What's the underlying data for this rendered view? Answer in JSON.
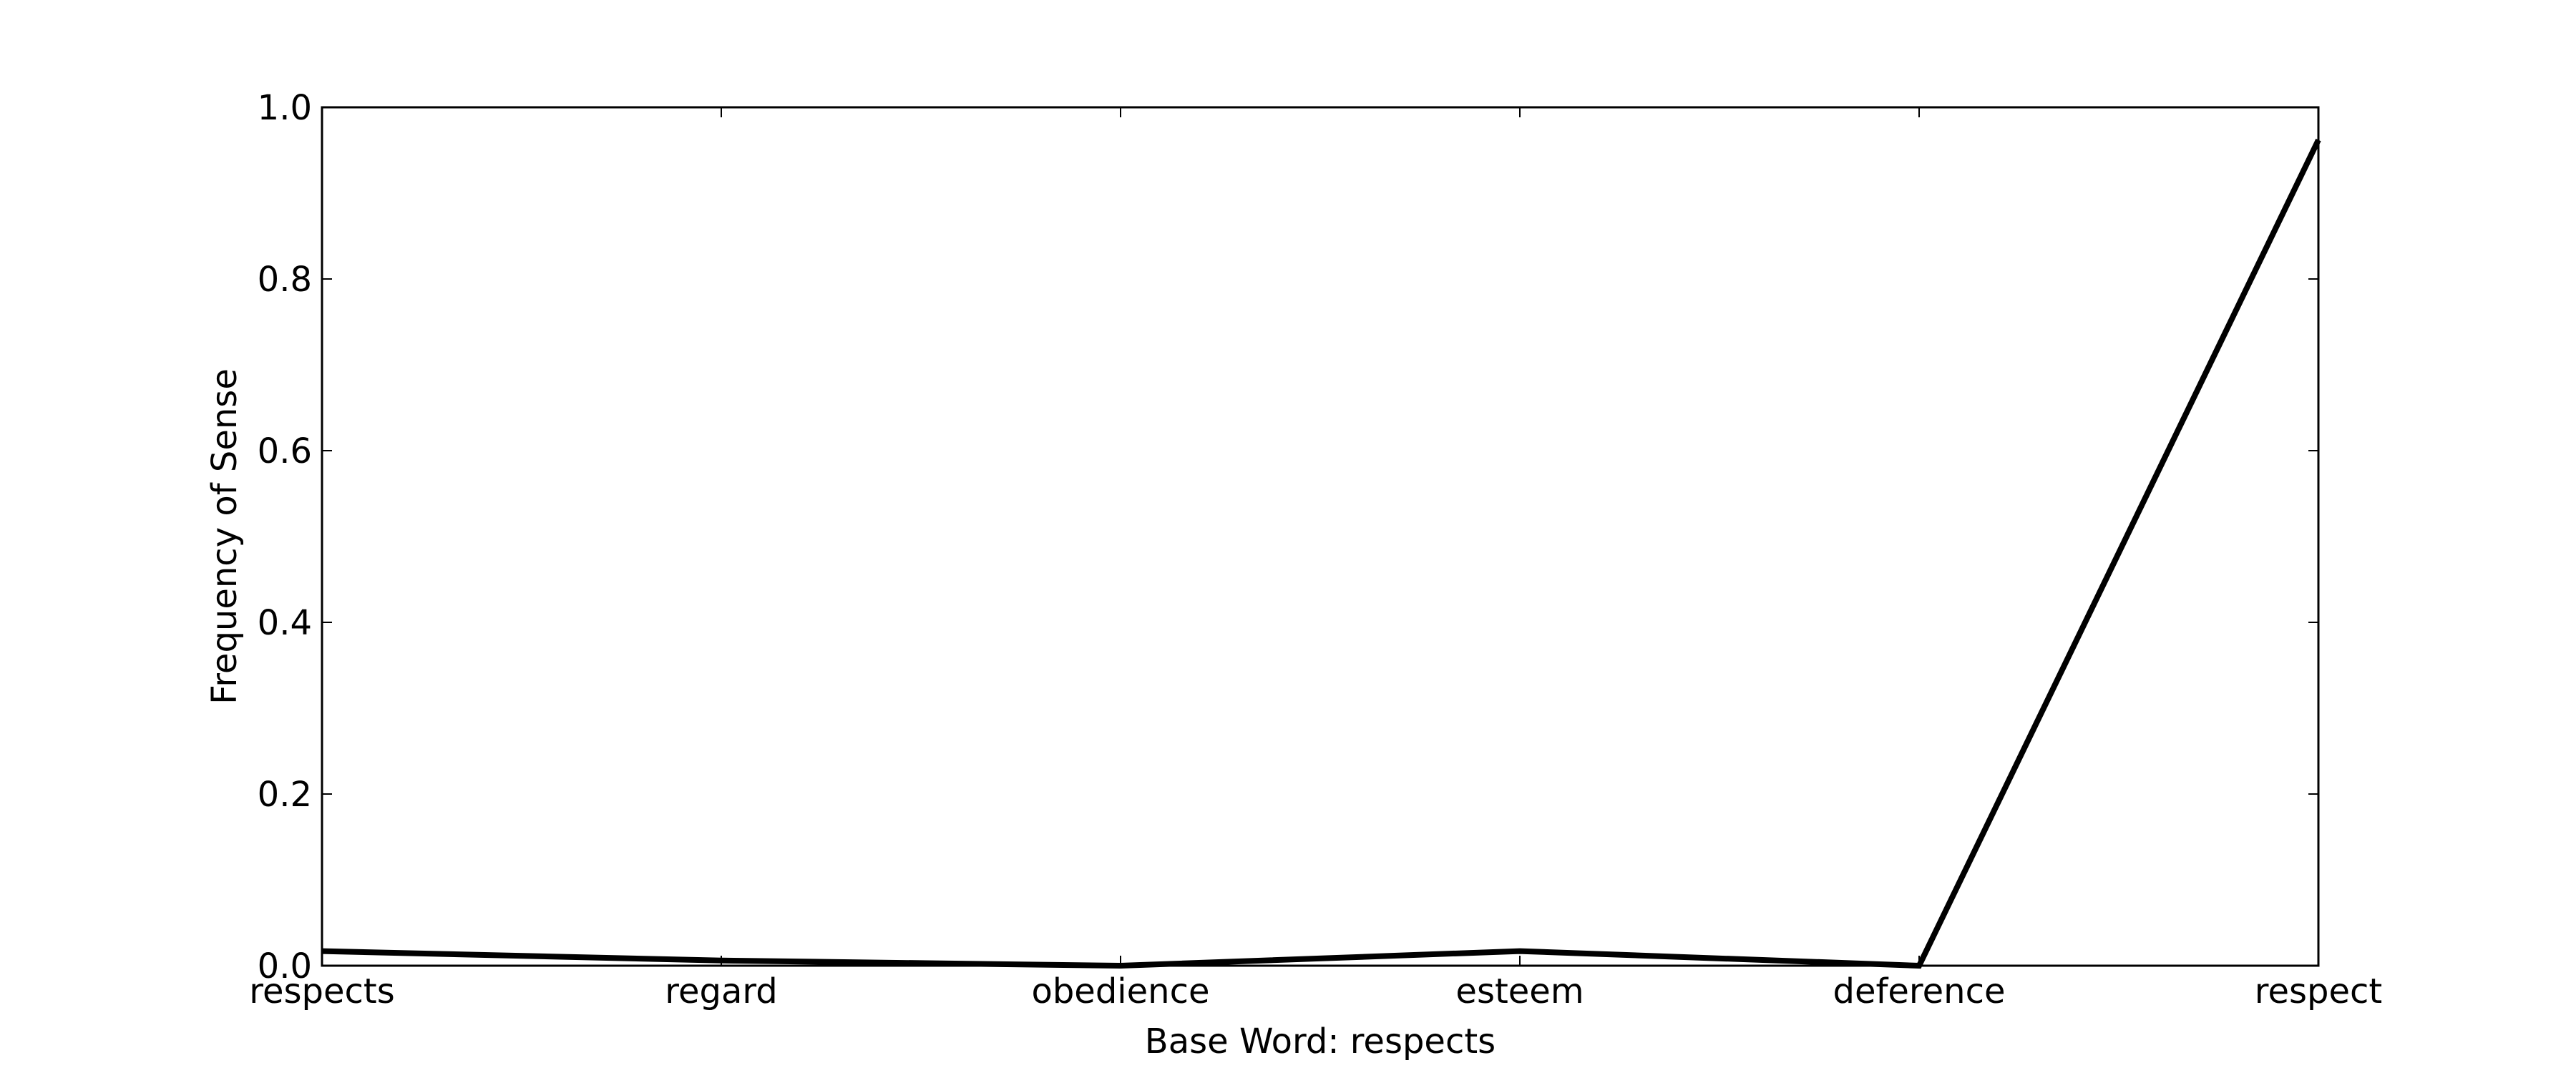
{
  "chart_data": {
    "type": "line",
    "title": "",
    "xlabel": "Base Word: respects",
    "ylabel": "Frequency of Sense",
    "categories": [
      "respects",
      "regard",
      "obedience",
      "esteem",
      "deference",
      "respect"
    ],
    "series": [
      {
        "values": [
          0.017,
          0.006,
          0.0,
          0.017,
          0.0,
          0.962
        ]
      }
    ],
    "ylim": [
      0.0,
      1.0
    ],
    "yticks": [
      "0.0",
      "0.2",
      "0.4",
      "0.6",
      "0.8",
      "1.0"
    ],
    "line_color": "#000000",
    "grid": false,
    "legend": "none"
  }
}
